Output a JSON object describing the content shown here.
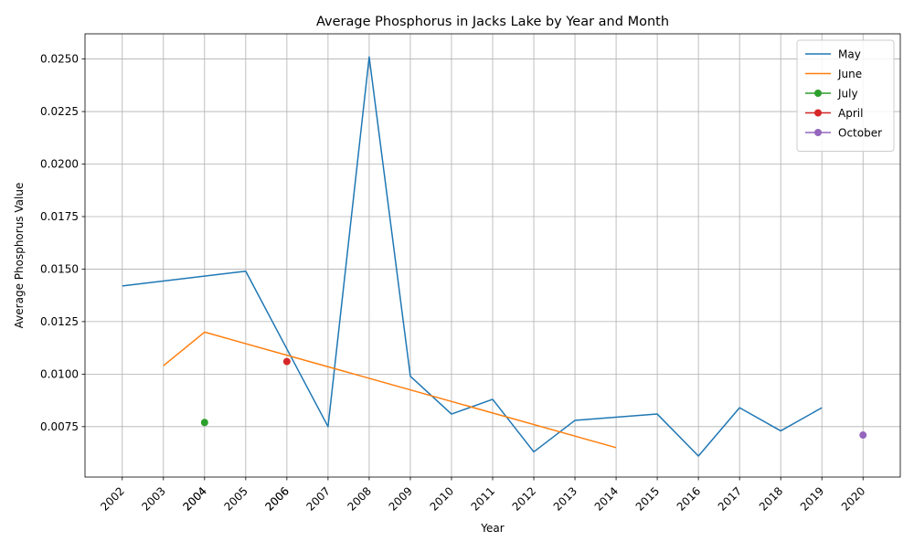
{
  "chart_data": {
    "type": "line",
    "title": "Average Phosphorus in Jacks Lake by Year and Month",
    "xlabel": "Year",
    "ylabel": "Average Phosphorus Value",
    "x_categories": [
      "2002",
      "2003",
      "2004",
      "2005",
      "2006",
      "2007",
      "2008",
      "2009",
      "2010",
      "2011",
      "2012",
      "2013",
      "2014",
      "2015",
      "2016",
      "2017",
      "2018",
      "2019",
      "2020"
    ],
    "x_tick_labels": [
      "2002",
      "2003",
      "2004",
      "2004",
      "2005",
      "2006",
      "2006",
      "2007",
      "2008",
      "2009",
      "2010",
      "2011",
      "2012",
      "2013",
      "2014",
      "2015",
      "2016",
      "2017",
      "2018",
      "2019",
      "2020"
    ],
    "ylim": [
      0.0051,
      0.0262
    ],
    "y_ticks": [
      0.0075,
      0.01,
      0.0125,
      0.015,
      0.0175,
      0.02,
      0.0225,
      0.025
    ],
    "y_tick_labels": [
      "0.0075",
      "0.0100",
      "0.0125",
      "0.0150",
      "0.0175",
      "0.0200",
      "0.0225",
      "0.0250"
    ],
    "grid": true,
    "legend_position": "top-right",
    "series": [
      {
        "name": "May",
        "color": "#1f77b4",
        "marker": false,
        "points": [
          {
            "x": "2002",
            "y": 0.0142
          },
          {
            "x": "2005",
            "y": 0.0149
          },
          {
            "x": "2006",
            "y": 0.0112
          },
          {
            "x": "2007",
            "y": 0.0075
          },
          {
            "x": "2008",
            "y": 0.0251
          },
          {
            "x": "2009",
            "y": 0.0099
          },
          {
            "x": "2010",
            "y": 0.0081
          },
          {
            "x": "2011",
            "y": 0.0088
          },
          {
            "x": "2012",
            "y": 0.0063
          },
          {
            "x": "2013",
            "y": 0.0078
          },
          {
            "x": "2015",
            "y": 0.0081
          },
          {
            "x": "2016",
            "y": 0.0061
          },
          {
            "x": "2017",
            "y": 0.0084
          },
          {
            "x": "2018",
            "y": 0.0073
          },
          {
            "x": "2019",
            "y": 0.0084
          }
        ]
      },
      {
        "name": "June",
        "color": "#ff7f0e",
        "marker": false,
        "points": [
          {
            "x": "2003",
            "y": 0.0104
          },
          {
            "x": "2004",
            "y": 0.012
          },
          {
            "x": "2014",
            "y": 0.0065
          }
        ]
      },
      {
        "name": "July",
        "color": "#2ca02c",
        "marker": true,
        "points": [
          {
            "x": "2004",
            "y": 0.0077
          }
        ]
      },
      {
        "name": "April",
        "color": "#d62728",
        "marker": true,
        "points": [
          {
            "x": "2006",
            "y": 0.0106
          }
        ]
      },
      {
        "name": "October",
        "color": "#9467bd",
        "marker": true,
        "points": [
          {
            "x": "2020",
            "y": 0.0071
          }
        ]
      }
    ]
  }
}
